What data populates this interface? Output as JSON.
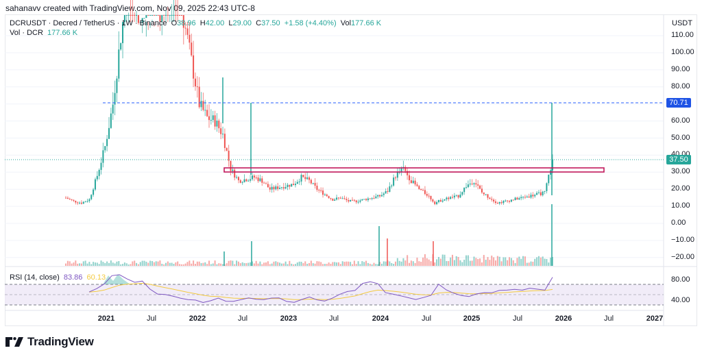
{
  "caption": "sahanavv created with TradingView.com, Nov 09, 2025 22:43 UTC-8",
  "header": {
    "symbol": "DCRUSDT · Decred / TetherUS · 1W · Binance",
    "open_label": "O",
    "open": "38.96",
    "high_label": "H",
    "high": "42.00",
    "low_label": "L",
    "low": "29.00",
    "close_label": "C",
    "close": "37.50",
    "change": "+1.58 (+4.40%)",
    "vol_label": "Vol",
    "vol": "177.66 K"
  },
  "volume_legend": {
    "label": "Vol · DCR",
    "value": "177.66 K"
  },
  "rsi_legend": {
    "label": "RSI (14, close)",
    "rsi": "83.86",
    "ma": "60.13"
  },
  "price_axis": {
    "currency": "USDT",
    "ticks": [
      "110.00",
      "100.00",
      "90.00",
      "80.00",
      "60.00",
      "50.00",
      "40.00",
      "30.00",
      "20.00",
      "10.00",
      "0.00",
      "−10.00",
      "−20.00"
    ],
    "tag_resistance": "70.71",
    "tag_last": "37.50"
  },
  "rsi_axis": {
    "ticks": [
      "80.00",
      "40.00"
    ]
  },
  "time_axis": {
    "ticks": [
      {
        "label": "2021",
        "bold": true
      },
      {
        "label": "Jul",
        "bold": false
      },
      {
        "label": "2022",
        "bold": true
      },
      {
        "label": "Jul",
        "bold": false
      },
      {
        "label": "2023",
        "bold": true
      },
      {
        "label": "Jul",
        "bold": false
      },
      {
        "label": "2024",
        "bold": true
      },
      {
        "label": "Jul",
        "bold": false
      },
      {
        "label": "2025",
        "bold": true
      },
      {
        "label": "Jul",
        "bold": false
      },
      {
        "label": "2026",
        "bold": true
      },
      {
        "label": "Jul",
        "bold": false
      },
      {
        "label": "2027",
        "bold": true
      }
    ]
  },
  "brand": {
    "name": "TradingView"
  },
  "colors": {
    "up": "#26a69a",
    "down": "#ef5350",
    "resistance_line": "#2962ff",
    "zone": "#c2185b",
    "rsi_line": "#7e57c2",
    "rsi_ma": "#f3ca3f",
    "rsi_band": "#ede7f6",
    "last_price_tag": "#26a69a",
    "resistance_tag": "#1e53e5"
  },
  "chart_data": {
    "type": "candlestick",
    "title": "DCRUSDT · Decred / TetherUS · 1W · Binance",
    "xlabel": "",
    "ylabel": "USDT",
    "ylim": [
      -25,
      115
    ],
    "x_range": [
      "2020-09",
      "2027-01"
    ],
    "grid": true,
    "annotations": [
      {
        "type": "hline",
        "value": 70.71,
        "style": "dashed",
        "color": "#2962ff",
        "label": "70.71"
      },
      {
        "type": "zone",
        "from": 30.5,
        "to": 32.5,
        "color": "#c2185b",
        "x_start": "2022-05",
        "x_end": "2026-01"
      },
      {
        "type": "last_price",
        "value": 37.5
      }
    ],
    "series": [
      {
        "name": "DCRUSDT close (approx, sampled)",
        "x": [
          "2020-09",
          "2020-10",
          "2020-11",
          "2020-12",
          "2021-01",
          "2021-02",
          "2021-03",
          "2021-04",
          "2021-05",
          "2021-06",
          "2021-07",
          "2021-08",
          "2021-09",
          "2021-10",
          "2021-11",
          "2021-12",
          "2022-01",
          "2022-02",
          "2022-03",
          "2022-04",
          "2022-05",
          "2022-06",
          "2022-07",
          "2022-08",
          "2022-09",
          "2022-10",
          "2022-11",
          "2022-12",
          "2023-01",
          "2023-02",
          "2023-03",
          "2023-04",
          "2023-05",
          "2023-06",
          "2023-07",
          "2023-08",
          "2023-09",
          "2023-10",
          "2023-11",
          "2023-12",
          "2024-01",
          "2024-02",
          "2024-03",
          "2024-04",
          "2024-05",
          "2024-06",
          "2024-07",
          "2024-08",
          "2024-09",
          "2024-10",
          "2024-11",
          "2024-12",
          "2025-01",
          "2025-02",
          "2025-03",
          "2025-04",
          "2025-05",
          "2025-06",
          "2025-07",
          "2025-08",
          "2025-09",
          "2025-10",
          "2025-11"
        ],
        "values": [
          15,
          13,
          12,
          14,
          28,
          45,
          70,
          110,
          140,
          125,
          120,
          130,
          125,
          135,
          140,
          120,
          95,
          70,
          62,
          60,
          52,
          32,
          25,
          26,
          27,
          25,
          20,
          21,
          22,
          23,
          27,
          25,
          20,
          17,
          14,
          15,
          13,
          13,
          14,
          15,
          16,
          19,
          28,
          32,
          25,
          20,
          17,
          12,
          14,
          15,
          16,
          22,
          25,
          18,
          15,
          12,
          13,
          14,
          15,
          16,
          17,
          18,
          37.5
        ]
      },
      {
        "name": "Vol · DCR",
        "unit": "K",
        "last": 177.66
      },
      {
        "name": "RSI (14, close)",
        "last": 83.86,
        "ma_last": 60.13,
        "bands": [
          70,
          50,
          30
        ]
      }
    ]
  }
}
